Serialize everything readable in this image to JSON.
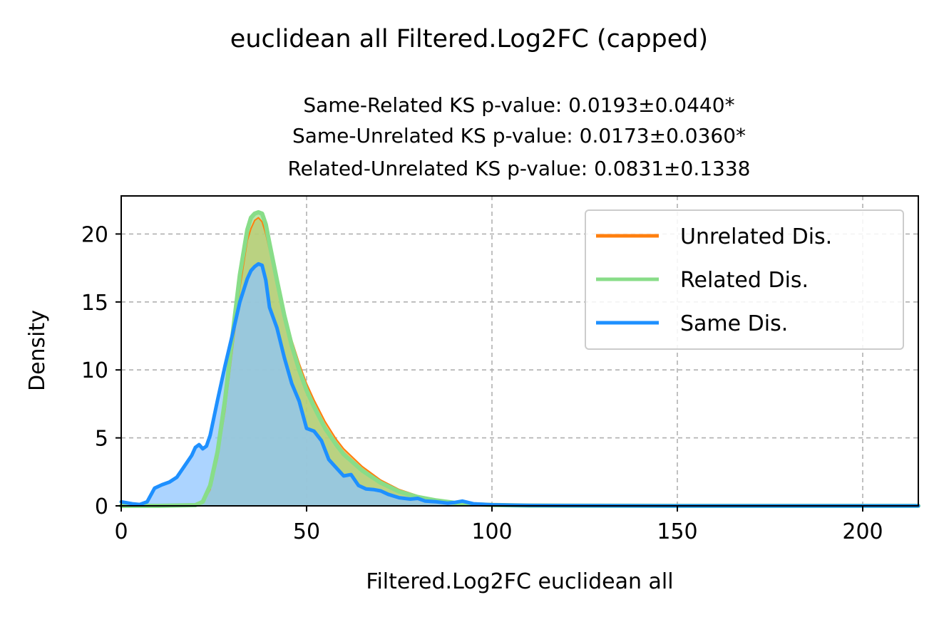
{
  "figure": {
    "suptitle": "euclidean all Filtered.Log2FC (capped)",
    "title_lines": [
      "Same-Related KS p-value: 0.0193±0.0440*",
      "Same-Unrelated KS p-value: 0.0173±0.0360*",
      "Related-Unrelated KS p-value: 0.0831±0.1338"
    ]
  },
  "chart_data": {
    "type": "area",
    "title": "Same-Related KS p-value: 0.0193±0.0440*\nSame-Unrelated KS p-value: 0.0173±0.0360*\nRelated-Unrelated KS p-value: 0.0831±0.1338",
    "xlabel": "Filtered.Log2FC euclidean all",
    "ylabel": "Density",
    "xlim": [
      0,
      215
    ],
    "ylim": [
      0,
      22.8
    ],
    "xticks": [
      0,
      50,
      100,
      150,
      200
    ],
    "yticks": [
      0,
      5,
      10,
      15,
      20
    ],
    "grid": true,
    "legend_position": "top-right",
    "series": [
      {
        "name": "Unrelated Dis.",
        "color": "#ff7f0e",
        "fill": "#ff9a2e",
        "x": [
          0,
          10,
          20,
          22,
          24,
          26,
          28,
          30,
          32,
          34,
          35,
          36,
          37,
          38,
          39,
          40,
          42,
          44,
          46,
          48,
          50,
          52,
          55,
          58,
          60,
          65,
          70,
          75,
          80,
          85,
          90,
          95,
          100,
          110,
          120,
          150,
          215
        ],
        "y": [
          0,
          0,
          0.05,
          0.2,
          1.2,
          3.5,
          7.0,
          11.5,
          16.0,
          19.5,
          20.4,
          21.0,
          21.2,
          20.9,
          20.0,
          18.8,
          16.6,
          14.2,
          12.2,
          10.5,
          9.0,
          7.8,
          6.2,
          4.9,
          4.2,
          2.9,
          1.9,
          1.2,
          0.75,
          0.45,
          0.25,
          0.15,
          0.08,
          0.03,
          0.01,
          0,
          0
        ]
      },
      {
        "name": "Related Dis.",
        "color": "#88dd88",
        "fill": "#a0dc8a",
        "x": [
          0,
          10,
          20,
          22,
          24,
          26,
          28,
          30,
          32,
          34,
          35,
          36,
          37,
          38,
          39,
          40,
          42,
          44,
          46,
          48,
          50,
          52,
          55,
          58,
          60,
          65,
          70,
          75,
          80,
          85,
          90,
          95,
          100,
          110,
          120,
          150,
          215
        ],
        "y": [
          0,
          0,
          0.05,
          0.3,
          1.5,
          4.0,
          7.8,
          12.5,
          17.0,
          20.3,
          21.2,
          21.5,
          21.6,
          21.5,
          20.7,
          19.3,
          16.6,
          14.0,
          11.8,
          10.0,
          8.5,
          7.3,
          5.7,
          4.5,
          3.8,
          2.6,
          1.7,
          1.05,
          0.65,
          0.4,
          0.22,
          0.12,
          0.07,
          0.02,
          0.01,
          0,
          0
        ]
      },
      {
        "name": "Same Dis.",
        "color": "#1e90ff",
        "fill": "#8cc4ff",
        "x": [
          0,
          3,
          5,
          7,
          9,
          11,
          13,
          15,
          17,
          19,
          20,
          21,
          22,
          23,
          24,
          25,
          26,
          28,
          30,
          32,
          34,
          35,
          36,
          37,
          38,
          39,
          40,
          42,
          44,
          46,
          48,
          50,
          52,
          54,
          56,
          58,
          60,
          62,
          64,
          66,
          68,
          70,
          72,
          75,
          78,
          80,
          82,
          85,
          88,
          90,
          92,
          95,
          100,
          105,
          110,
          120,
          130,
          150,
          215
        ],
        "y": [
          0.3,
          0.15,
          0.1,
          0.3,
          1.3,
          1.55,
          1.75,
          2.1,
          2.9,
          3.7,
          4.3,
          4.5,
          4.2,
          4.4,
          5.2,
          6.5,
          7.8,
          10.3,
          12.6,
          15.0,
          16.7,
          17.3,
          17.6,
          17.8,
          17.7,
          16.6,
          14.6,
          13.1,
          10.9,
          9.0,
          7.7,
          5.7,
          5.5,
          4.8,
          3.4,
          2.8,
          2.2,
          2.3,
          1.5,
          1.25,
          1.2,
          1.1,
          0.85,
          0.6,
          0.5,
          0.55,
          0.35,
          0.3,
          0.2,
          0.25,
          0.35,
          0.15,
          0.08,
          0.05,
          0.03,
          0.02,
          0.01,
          0,
          0
        ]
      }
    ]
  }
}
